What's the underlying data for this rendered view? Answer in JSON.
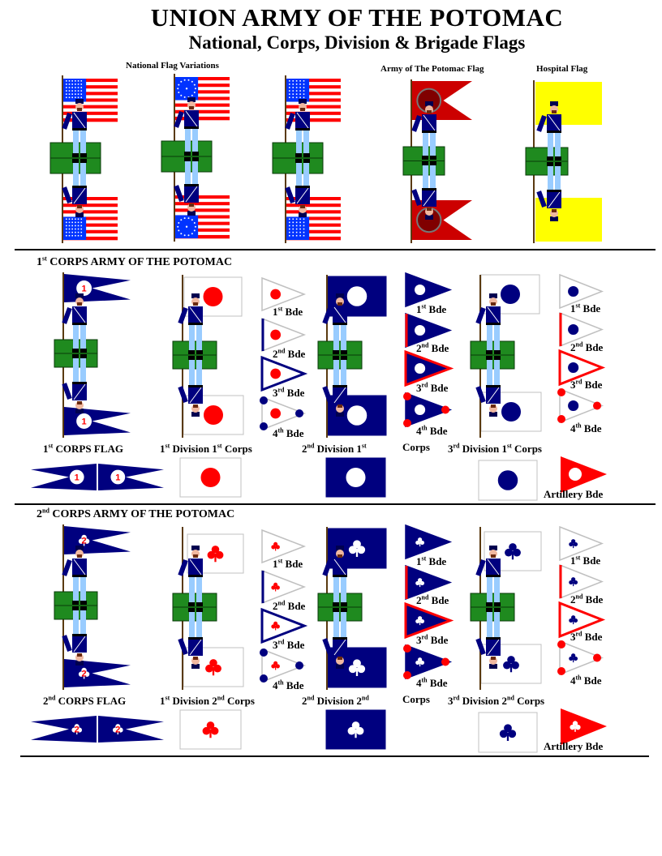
{
  "title": "UNION ARMY OF THE POTOMAC",
  "subtitle": "National, Corps, Division & Brigade Flags",
  "top": {
    "national_label": "National Flag Variations",
    "army_label": "Army of The Potomac Flag",
    "hospital_label": "Hospital Flag"
  },
  "colors": {
    "union_blue": "#00007f",
    "flag_red": "#ff0000",
    "army_flag_red": "#cc0000",
    "hospital_yellow": "#ffff00",
    "grass_green": "#1f8a1f",
    "white_flag_border": "#c0c0c0"
  },
  "corps": [
    {
      "heading": [
        "1",
        "st",
        " CORPS ARMY OF THE POTOMAC"
      ],
      "symbol": "disc",
      "corps_number": "1",
      "brigades": [
        [
          "1",
          "st",
          " Bde"
        ],
        [
          "2",
          "nd",
          " Bde"
        ],
        [
          "3",
          "rd",
          " Bde"
        ],
        [
          "4",
          "th",
          " Bde"
        ]
      ],
      "captions": {
        "corps_flag": [
          "1",
          "st",
          " CORPS FLAG"
        ],
        "division_1": [
          "1",
          "st",
          " Division 1",
          "st",
          " Corps"
        ],
        "division_2": [
          "2",
          "nd",
          " Division 1",
          "st",
          ""
        ],
        "division_2_cont": [
          "Corps"
        ],
        "division_3": [
          "3",
          "rd",
          " Division 1",
          "st",
          " Corps"
        ]
      },
      "artillery": "Artillery Bde"
    },
    {
      "heading": [
        "2",
        "nd",
        " CORPS ARMY OF THE POTOMAC"
      ],
      "symbol": "clover",
      "corps_number": "2",
      "brigades": [
        [
          "1",
          "st",
          " Bde"
        ],
        [
          "2",
          "nd",
          " Bde"
        ],
        [
          "3",
          "rd",
          " Bde"
        ],
        [
          "4",
          "th",
          " Bde"
        ]
      ],
      "captions": {
        "corps_flag": [
          "2",
          "nd",
          " CORPS FLAG"
        ],
        "division_1": [
          "1",
          "st",
          " Division 2",
          "nd",
          " Corps"
        ],
        "division_2": [
          "2",
          "nd",
          " Division 2",
          "nd",
          ""
        ],
        "division_2_cont": [
          "Corps"
        ],
        "division_3": [
          "3",
          "rd",
          " Division 2",
          "nd",
          " Corps"
        ]
      },
      "artillery": "Artillery Bde"
    }
  ]
}
